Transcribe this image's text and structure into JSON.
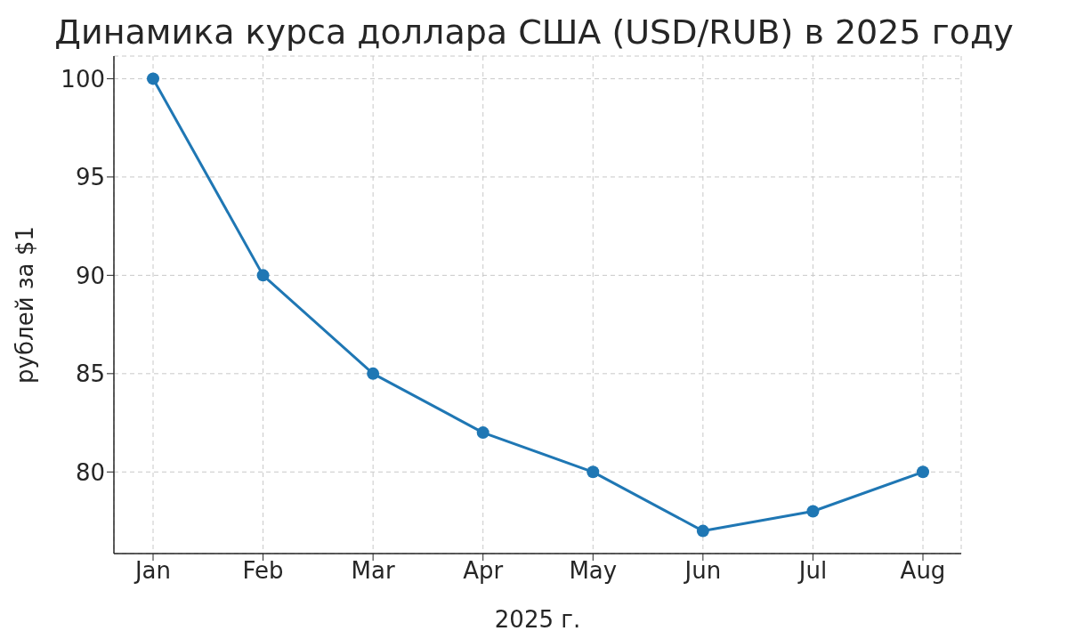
{
  "chart_data": {
    "type": "line",
    "title": "Динамика курса доллара США (USD/RUB) в 2025 году",
    "xlabel": "2025 г.",
    "ylabel": "рублей за $1",
    "categories": [
      "Jan",
      "Feb",
      "Mar",
      "Apr",
      "May",
      "Jun",
      "Jul",
      "Aug"
    ],
    "series": [
      {
        "color": "#1f77b4",
        "values": [
          100,
          90,
          85,
          82,
          80,
          77,
          78,
          80
        ]
      }
    ],
    "ylim": [
      75.85,
      101.15
    ],
    "yticks": [
      80,
      85,
      90,
      95,
      100
    ],
    "grid": true,
    "marker": "circle",
    "line_style": "solid",
    "legend": false
  }
}
